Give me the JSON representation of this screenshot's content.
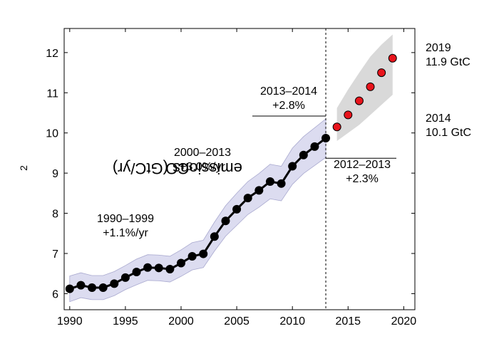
{
  "chart_data": {
    "type": "line",
    "ylabel": {
      "pre": "CO",
      "sub": "2",
      "post": " emissions (GtC/yr)"
    },
    "xlim": [
      1989.5,
      2021
    ],
    "ylim": [
      5.6,
      12.6
    ],
    "xticks": [
      1990,
      1995,
      2000,
      2005,
      2010,
      2015,
      2020
    ],
    "yticks": [
      6,
      7,
      8,
      9,
      10,
      11,
      12
    ],
    "series": [
      {
        "role": "observed",
        "color": "#000000",
        "x": [
          1990,
          1991,
          1992,
          1993,
          1994,
          1995,
          1996,
          1997,
          1998,
          1999,
          2000,
          2001,
          2002,
          2003,
          2004,
          2005,
          2006,
          2007,
          2008,
          2009,
          2010,
          2011,
          2012,
          2013
        ],
        "y": [
          6.12,
          6.21,
          6.15,
          6.15,
          6.25,
          6.4,
          6.54,
          6.65,
          6.64,
          6.61,
          6.76,
          6.93,
          6.99,
          7.42,
          7.81,
          8.1,
          8.38,
          8.57,
          8.79,
          8.74,
          9.17,
          9.45,
          9.66,
          9.87
        ],
        "band_lower": [
          5.8,
          5.9,
          5.85,
          5.85,
          5.95,
          6.1,
          6.22,
          6.33,
          6.32,
          6.29,
          6.43,
          6.59,
          6.65,
          7.06,
          7.43,
          7.7,
          7.97,
          8.15,
          8.36,
          8.31,
          8.72,
          8.99,
          9.19,
          9.39
        ],
        "band_upper": [
          6.44,
          6.52,
          6.45,
          6.45,
          6.55,
          6.7,
          6.86,
          6.97,
          6.96,
          6.93,
          7.09,
          7.27,
          7.33,
          7.78,
          8.19,
          8.5,
          8.79,
          8.99,
          9.22,
          9.17,
          9.62,
          9.91,
          10.13,
          10.35
        ]
      },
      {
        "role": "projection",
        "color": "#e8141c",
        "x": [
          2014,
          2015,
          2016,
          2017,
          2018,
          2019
        ],
        "y": [
          10.15,
          10.45,
          10.8,
          11.15,
          11.5,
          11.86
        ],
        "band_lower": [
          9.8,
          10.0,
          10.2,
          10.45,
          10.7,
          10.95
        ],
        "band_upper": [
          10.62,
          11.08,
          11.5,
          11.9,
          12.2,
          12.45
        ]
      }
    ],
    "vline_x": 2013,
    "annotations": {
      "a1990": {
        "line1": "1990–1999",
        "line2": "+1.1%/yr"
      },
      "a2000": {
        "line1": "2000–2013",
        "line2": "+3.0%/yr"
      },
      "a1314": {
        "line1": "2013–2014",
        "line2": "+2.8%"
      },
      "a1213": {
        "line1": "2012–2013",
        "line2": "+2.3%"
      },
      "a2019": {
        "line1": "2019",
        "line2": "11.9 GtC"
      },
      "a2014": {
        "line1": "2014",
        "line2": "10.1 GtC"
      }
    },
    "colors": {
      "hist_band": "#dcdcf0",
      "hist_band_edge": "#a9a9cf",
      "proj_band": "#d9d9d9",
      "line": "#000000",
      "projection_marker": "#e8141c"
    }
  }
}
